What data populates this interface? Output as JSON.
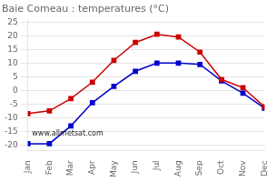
{
  "chart_data": {
    "type": "line",
    "title": "Baie Comeau : temperatures (°C)",
    "categories": [
      "Jan",
      "Feb",
      "Mar",
      "Apr",
      "May",
      "Jun",
      "Jul",
      "Aug",
      "Sep",
      "Oct",
      "Nov",
      "Dec"
    ],
    "series": [
      {
        "color": "#cc0000",
        "marker": "square",
        "values": [
          -8.5,
          -7.5,
          -3,
          3,
          11,
          17.5,
          20.5,
          19.5,
          14,
          4,
          1,
          -6
        ]
      },
      {
        "color": "#0000cc",
        "marker": "square",
        "values": [
          -19.5,
          -19.5,
          -13,
          -4.5,
          1.5,
          7,
          10,
          10,
          9.5,
          3.5,
          -1,
          -6.5
        ]
      }
    ],
    "ylim": [
      -22,
      26
    ],
    "yticks": [
      -20,
      -15,
      -10,
      -5,
      0,
      5,
      10,
      15,
      20,
      25
    ],
    "grid": true,
    "annotation": "www.allmetsat.com"
  }
}
